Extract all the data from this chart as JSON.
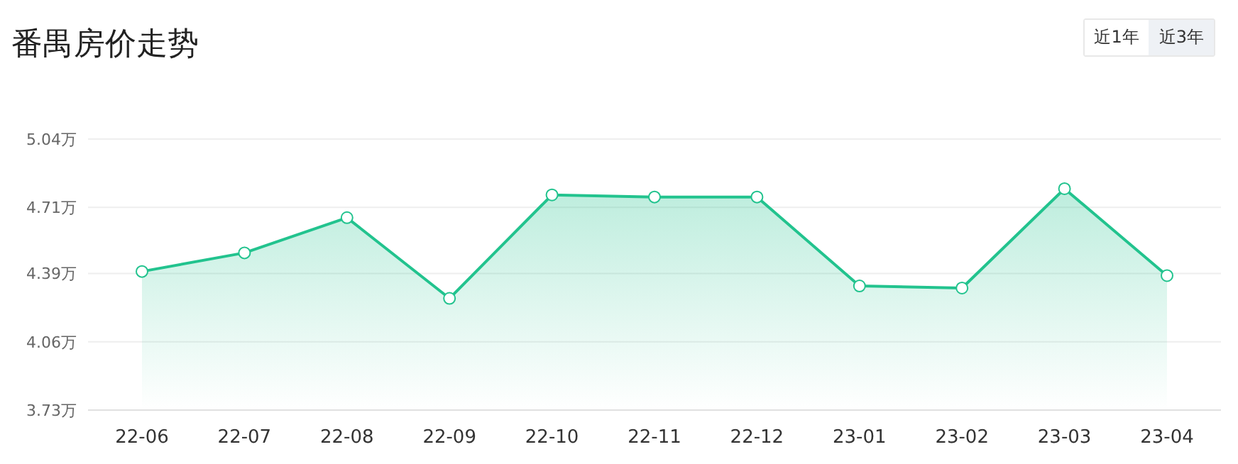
{
  "chart_data": {
    "type": "area",
    "title": "番禺房价走势",
    "annotations": [
      "近1年",
      "近3年"
    ],
    "categories": [
      "22-06",
      "22-07",
      "22-08",
      "22-09",
      "22-10",
      "22-11",
      "22-12",
      "23-01",
      "23-02",
      "23-03",
      "23-04"
    ],
    "series": [
      {
        "color": "#22c38e",
        "values": [
          4.4,
          4.49,
          4.66,
          4.27,
          4.77,
          4.76,
          4.76,
          4.33,
          4.32,
          4.8,
          4.38
        ]
      }
    ],
    "ylim": [
      3.73,
      5.04
    ],
    "yticks": [
      {
        "value": 3.73,
        "label": "3.73万"
      },
      {
        "value": 4.06,
        "label": "4.06万"
      },
      {
        "value": 4.39,
        "label": "4.39万"
      },
      {
        "value": 4.71,
        "label": "4.71万"
      },
      {
        "value": 5.04,
        "label": "5.04万"
      }
    ],
    "grid": "y",
    "marker": "circle"
  }
}
